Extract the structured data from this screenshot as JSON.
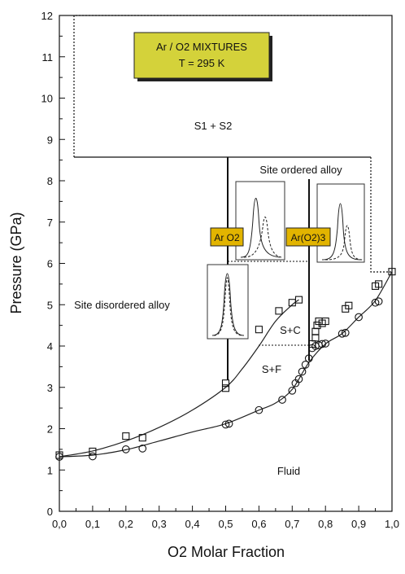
{
  "chart_data": {
    "type": "scatter",
    "title": "Ar / O2 MIXTURES",
    "subtitle": "T = 295 K",
    "xlabel": "O2 Molar Fraction",
    "ylabel": "Pressure (GPa)",
    "xlim": [
      0,
      1
    ],
    "ylim": [
      0,
      12
    ],
    "x_ticks": [
      "0,0",
      "0,1",
      "0,2",
      "0,3",
      "0,4",
      "0,5",
      "0,6",
      "0,7",
      "0,8",
      "0,9",
      "1,0"
    ],
    "y_ticks": [
      "0",
      "1",
      "2",
      "3",
      "4",
      "5",
      "6",
      "7",
      "8",
      "9",
      "10",
      "11",
      "12"
    ],
    "grid": false,
    "series": [
      {
        "marker": "square",
        "points": [
          [
            0.0,
            1.36
          ],
          [
            0.1,
            1.45
          ],
          [
            0.2,
            1.82
          ],
          [
            0.25,
            1.78
          ],
          [
            0.5,
            2.98
          ],
          [
            0.5,
            3.1
          ],
          [
            0.6,
            4.4
          ],
          [
            0.66,
            4.85
          ],
          [
            0.7,
            5.05
          ],
          [
            0.72,
            5.12
          ],
          [
            0.76,
            4.05
          ],
          [
            0.77,
            4.2
          ],
          [
            0.77,
            4.35
          ],
          [
            0.775,
            4.5
          ],
          [
            0.78,
            4.6
          ],
          [
            0.79,
            4.55
          ],
          [
            0.8,
            4.6
          ],
          [
            0.86,
            4.9
          ],
          [
            0.87,
            4.98
          ],
          [
            0.95,
            5.45
          ],
          [
            0.96,
            5.5
          ],
          [
            1.0,
            5.8
          ]
        ]
      },
      {
        "marker": "circle",
        "points": [
          [
            0.0,
            1.32
          ],
          [
            0.1,
            1.33
          ],
          [
            0.2,
            1.5
          ],
          [
            0.25,
            1.52
          ],
          [
            0.5,
            2.1
          ],
          [
            0.51,
            2.12
          ],
          [
            0.6,
            2.45
          ],
          [
            0.67,
            2.7
          ],
          [
            0.7,
            2.92
          ],
          [
            0.71,
            3.1
          ],
          [
            0.72,
            3.2
          ],
          [
            0.73,
            3.38
          ],
          [
            0.74,
            3.55
          ],
          [
            0.75,
            3.7
          ],
          [
            0.76,
            3.95
          ],
          [
            0.77,
            4.0
          ],
          [
            0.78,
            4.02
          ],
          [
            0.79,
            4.05
          ],
          [
            0.8,
            4.06
          ],
          [
            0.85,
            4.3
          ],
          [
            0.86,
            4.32
          ],
          [
            0.9,
            4.7
          ],
          [
            0.95,
            5.05
          ],
          [
            0.96,
            5.08
          ]
        ]
      }
    ],
    "fit_curves": [
      {
        "points": [
          [
            0,
            1.32
          ],
          [
            0.1,
            1.46
          ],
          [
            0.2,
            1.7
          ],
          [
            0.3,
            2.03
          ],
          [
            0.4,
            2.45
          ],
          [
            0.5,
            3.0
          ],
          [
            0.55,
            3.45
          ],
          [
            0.6,
            4.0
          ],
          [
            0.65,
            4.6
          ],
          [
            0.7,
            5.0
          ],
          [
            0.72,
            5.12
          ]
        ]
      },
      {
        "points": [
          [
            0,
            1.32
          ],
          [
            0.1,
            1.36
          ],
          [
            0.2,
            1.49
          ],
          [
            0.3,
            1.7
          ],
          [
            0.4,
            1.92
          ],
          [
            0.5,
            2.12
          ],
          [
            0.6,
            2.45
          ],
          [
            0.65,
            2.62
          ],
          [
            0.7,
            2.95
          ],
          [
            0.75,
            3.6
          ],
          [
            0.8,
            4.05
          ],
          [
            0.85,
            4.3
          ],
          [
            0.9,
            4.7
          ],
          [
            0.95,
            5.1
          ],
          [
            1.0,
            5.8
          ]
        ]
      }
    ],
    "region_labels": [
      "S1 + S2",
      "Site ordered alloy",
      "Site disordered alloy",
      "S+C",
      "S+F",
      "Fluid"
    ],
    "compound_tags": [
      "Ar O2",
      "Ar(O2)3"
    ]
  }
}
